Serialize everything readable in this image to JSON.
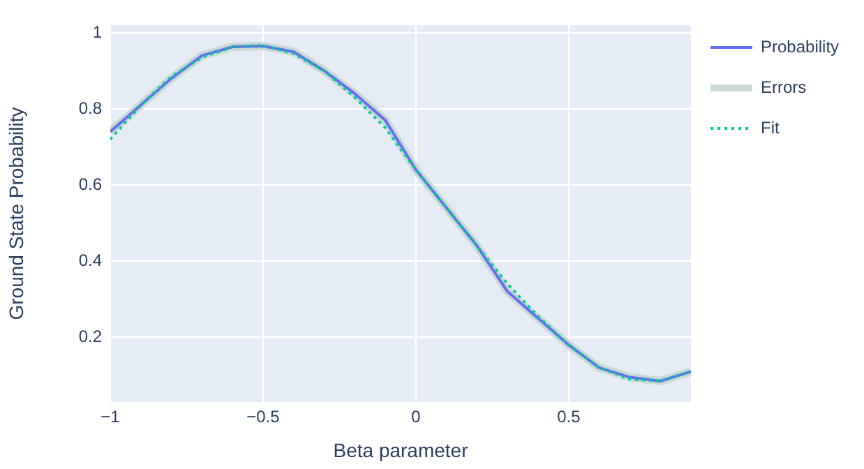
{
  "chart_data": {
    "type": "line",
    "xlabel": "Beta parameter",
    "ylabel": "Ground State Probability",
    "x": [
      -1,
      -0.9,
      -0.8,
      -0.7,
      -0.6,
      -0.5,
      -0.4,
      -0.3,
      -0.2,
      -0.1,
      0,
      0.1,
      0.2,
      0.3,
      0.4,
      0.5,
      0.6,
      0.7,
      0.8,
      0.9
    ],
    "series": [
      {
        "name": "Probability",
        "color": "#636efa",
        "values": [
          0.74,
          0.81,
          0.88,
          0.94,
          0.963,
          0.965,
          0.95,
          0.9,
          0.84,
          0.77,
          0.64,
          0.54,
          0.44,
          0.32,
          0.25,
          0.18,
          0.12,
          0.095,
          0.085,
          0.11
        ]
      },
      {
        "name": "Errors",
        "color": "#c9dad4",
        "values": [
          0.74,
          0.81,
          0.88,
          0.94,
          0.963,
          0.965,
          0.95,
          0.9,
          0.84,
          0.77,
          0.64,
          0.54,
          0.44,
          0.32,
          0.25,
          0.18,
          0.12,
          0.095,
          0.085,
          0.11
        ]
      },
      {
        "name": "Fit",
        "color": "#00cc96",
        "line_style": "dotted",
        "values": [
          0.72,
          0.81,
          0.885,
          0.935,
          0.963,
          0.967,
          0.945,
          0.9,
          0.83,
          0.75,
          0.64,
          0.54,
          0.44,
          0.34,
          0.255,
          0.18,
          0.12,
          0.09,
          0.085,
          0.11
        ]
      }
    ],
    "xlim": [
      -1,
      0.9
    ],
    "ylim": [
      0.03,
      1.02
    ],
    "xticks": [
      {
        "value": -1,
        "label": "−1"
      },
      {
        "value": -0.5,
        "label": "−0.5"
      },
      0,
      0.5
    ],
    "yticks": [
      0.2,
      0.4,
      0.6,
      0.8,
      1
    ],
    "grid": true,
    "legend": "top right",
    "marker": "none"
  }
}
